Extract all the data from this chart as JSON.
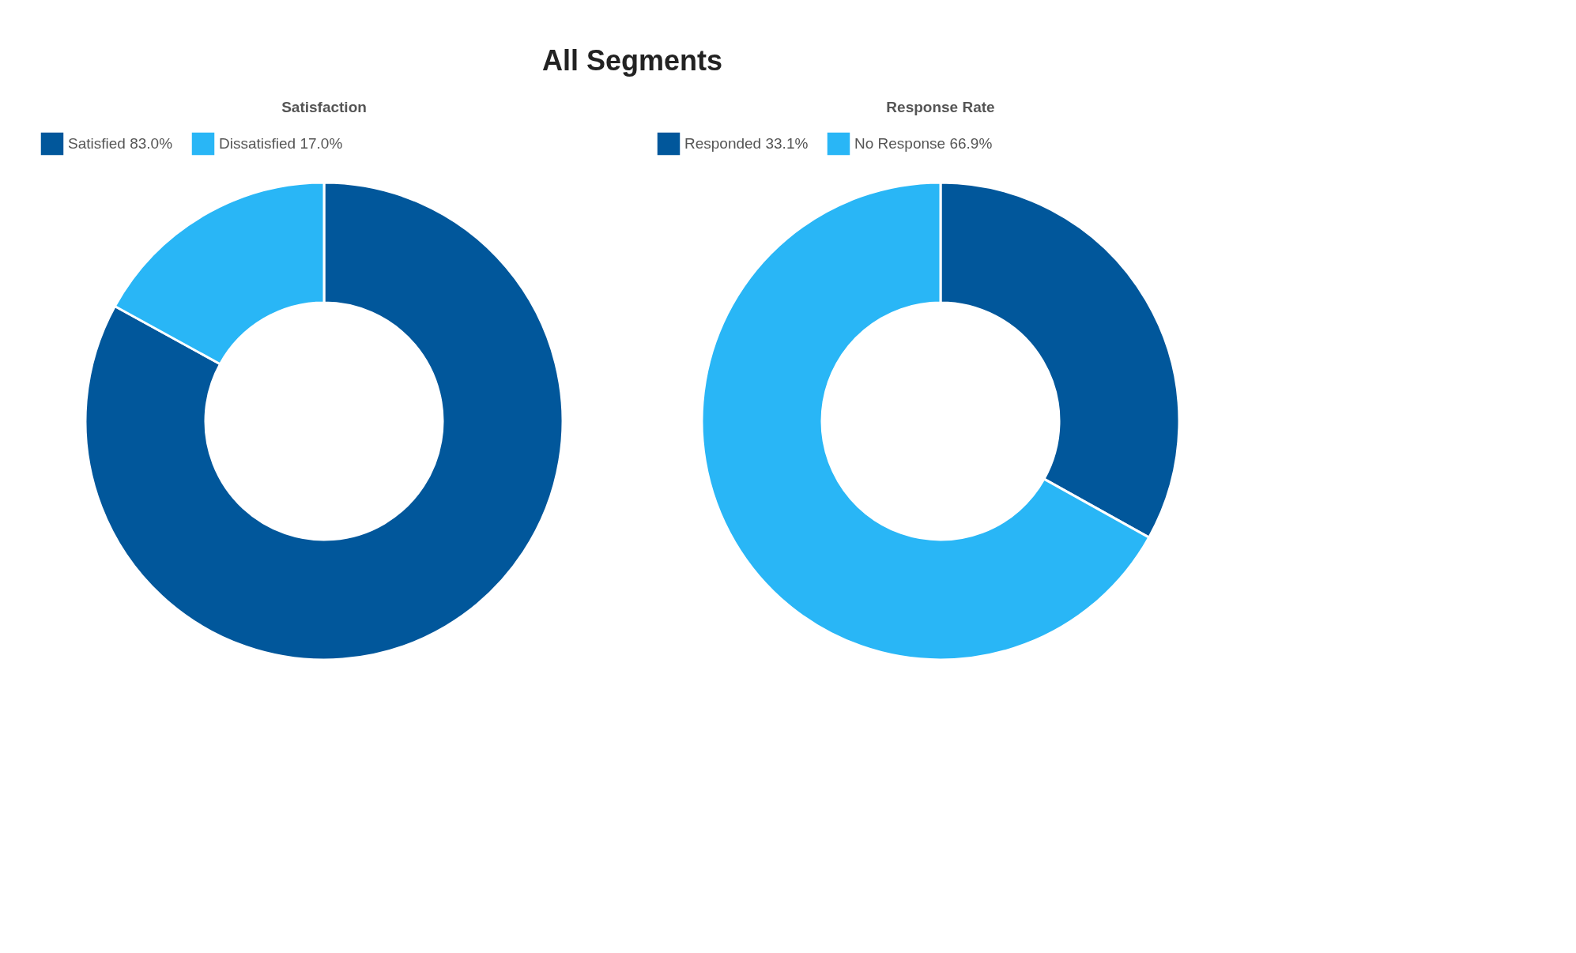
{
  "chart_data": [
    {
      "type": "donut",
      "title": "Satisfaction",
      "annotations": [
        "All Segments"
      ],
      "categories": [
        "Satisfied",
        "Dissatisfied"
      ],
      "values": [
        83.0,
        17.0
      ],
      "value_labels": [
        "83.0%",
        "17.0%"
      ],
      "colors": [
        "#01579b",
        "#29b6f6"
      ],
      "legend": "top"
    },
    {
      "type": "donut",
      "title": "Response Rate",
      "categories": [
        "Responded",
        "No Response"
      ],
      "values": [
        33.1,
        66.9
      ],
      "value_labels": [
        "33.1%",
        "66.9%"
      ],
      "colors": [
        "#01579b",
        "#29b6f6"
      ],
      "legend": "top"
    }
  ]
}
